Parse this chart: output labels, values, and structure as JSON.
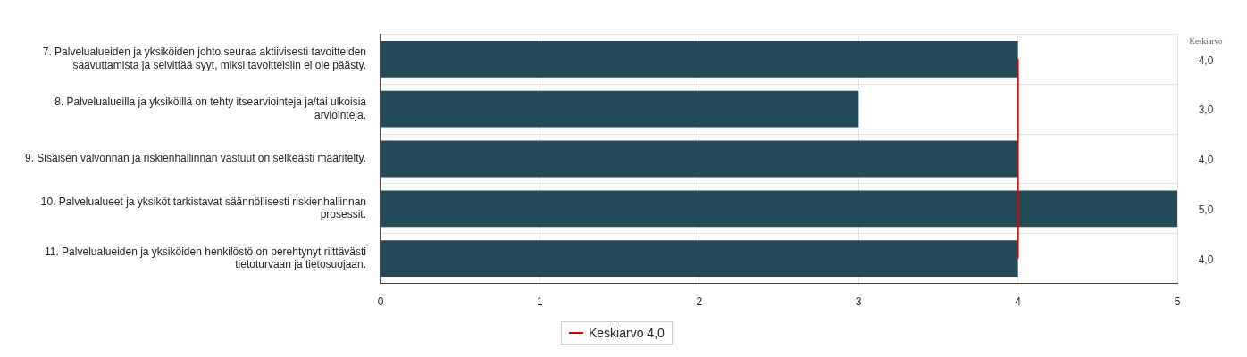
{
  "chart_data": {
    "type": "bar",
    "orientation": "horizontal",
    "categories": [
      "7. Palvelualueiden ja yksiköiden johto seuraa aktiivisesti tavoitteiden saavuttamista ja selvittää syyt, miksi tavoitteisiin ei ole päästy.",
      "8. Palvelualueilla ja yksiköillä on tehty itsearviointeja ja/tai ulkoisia arviointeja.",
      "9. Sisäisen valvonnan ja riskienhallinnan vastuut on selkeästi määritelty.",
      "10. Palvelualueet ja yksiköt tarkistavat säännöllisesti riskienhallinnan prosessit.",
      "11. Palvelualueiden ja yksiköiden henkilöstö on perehtynyt riittävästi tietoturvaan ja tietosuojaan."
    ],
    "values": [
      4,
      3,
      4,
      5,
      4
    ],
    "value_labels": [
      "4,0",
      "3,0",
      "4,0",
      "5,0",
      "4,0"
    ],
    "color": "#234a57",
    "xlim": [
      0,
      5
    ],
    "xticks": [
      0,
      1,
      2,
      3,
      4,
      5
    ],
    "grid": true,
    "ref_lines": [
      {
        "axis": "x",
        "value": 4,
        "label": "Keskiarvo 4,0",
        "color": "#e00000"
      }
    ],
    "legend": "bottom",
    "annotations": [
      "Keskiarvo"
    ]
  }
}
